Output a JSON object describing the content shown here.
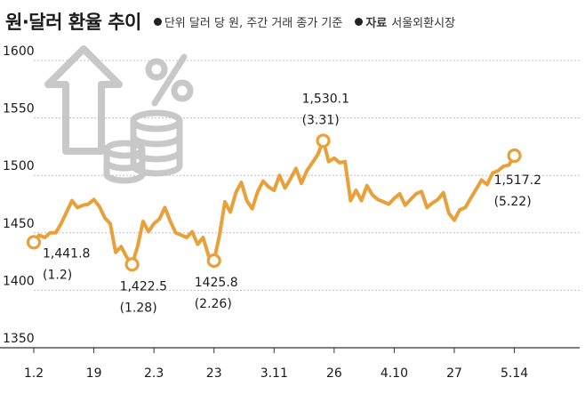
{
  "header": {
    "title": "원·달러 환율 추이",
    "unit_note": "단위 달러 당 원, 주간 거래 종가 기준",
    "source_label": "자료",
    "source_value": "서울외환시장"
  },
  "colors": {
    "line": "#E8A03A",
    "grid": "#bfbfbf",
    "axis": "#333333",
    "icon": "#c8c8c8",
    "text": "#1a1a1a"
  },
  "icons": [
    "up-arrow-icon",
    "percent-icon",
    "coin-stack-icon"
  ],
  "chart_data": {
    "type": "line",
    "title": "원·달러 환율 추이",
    "ylim": [
      1350,
      1600
    ],
    "yticks": [
      1600,
      1550,
      1500,
      1450,
      1400,
      1350
    ],
    "xlim": [
      0,
      98
    ],
    "xticks": [
      {
        "pos": 0,
        "label": "1.2"
      },
      {
        "pos": 11,
        "label": "19"
      },
      {
        "pos": 22,
        "label": "2.3"
      },
      {
        "pos": 33,
        "label": "23"
      },
      {
        "pos": 44,
        "label": "3.11"
      },
      {
        "pos": 55,
        "label": "26"
      },
      {
        "pos": 66,
        "label": "4.10"
      },
      {
        "pos": 77,
        "label": "27"
      },
      {
        "pos": 88,
        "label": "5.14"
      }
    ],
    "grid": true,
    "series": [
      {
        "values": [
          1441.8,
          1448,
          1446,
          1450,
          1450,
          1458,
          1468,
          1478,
          1472,
          1474,
          1475,
          1479,
          1473,
          1463,
          1458,
          1433,
          1438,
          1429,
          1422.5,
          1438,
          1460,
          1451,
          1458,
          1462,
          1472,
          1460,
          1450,
          1448,
          1446,
          1451,
          1440,
          1446,
          1430,
          1425.8,
          1448,
          1477,
          1468,
          1485,
          1494,
          1478,
          1471,
          1486,
          1495,
          1490,
          1487,
          1500,
          1489,
          1497,
          1506,
          1493,
          1504,
          1511,
          1518,
          1530.1,
          1512,
          1515,
          1511,
          1512,
          1478,
          1487,
          1478,
          1491,
          1483,
          1479,
          1477,
          1475,
          1480,
          1484,
          1474,
          1479,
          1484,
          1486,
          1472,
          1476,
          1479,
          1485,
          1467,
          1461,
          1470,
          1472,
          1480,
          1488,
          1496,
          1492,
          1502,
          1504,
          1508,
          1509,
          1517.2
        ],
        "x_start": 0
      }
    ],
    "markers": [
      {
        "index": 0,
        "value_label": "1,441.8",
        "pct_label": "(1.2)"
      },
      {
        "index": 18,
        "value_label": "1,422.5",
        "pct_label": "(1.28)"
      },
      {
        "index": 33,
        "value_label": "1425.8",
        "pct_label": "(2.26)"
      },
      {
        "index": 53,
        "value_label": "1,530.1",
        "pct_label": "(3.31)"
      },
      {
        "index": 88,
        "value_label": "1,517.2",
        "pct_label": "(5.22)"
      }
    ]
  }
}
